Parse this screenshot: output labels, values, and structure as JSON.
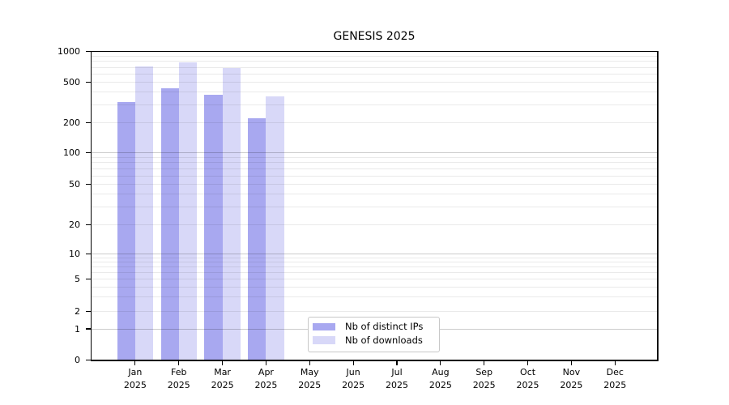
{
  "chart_data": {
    "type": "bar",
    "title": "GENESIS 2025",
    "categories": [
      "Jan",
      "Feb",
      "Mar",
      "Apr",
      "May",
      "Jun",
      "Jul",
      "Aug",
      "Sep",
      "Oct",
      "Nov",
      "Dec"
    ],
    "category_year": "2025",
    "series": [
      {
        "name": "Nb of distinct IPs",
        "color": "#a8a8f0",
        "values": [
          323,
          441,
          377,
          220,
          null,
          null,
          null,
          null,
          null,
          null,
          null,
          null
        ]
      },
      {
        "name": "Nb of downloads",
        "color": "#d8d8f8",
        "values": [
          710,
          778,
          692,
          366,
          null,
          null,
          null,
          null,
          null,
          null,
          null,
          null
        ]
      }
    ],
    "xlabel": "",
    "ylabel": "",
    "yaxis": {
      "scale": "log-with-zero",
      "range": [
        0,
        1000
      ],
      "tick_values": [
        0,
        1,
        2,
        5,
        10,
        20,
        50,
        100,
        200,
        500,
        1000
      ],
      "minor_grid_values": [
        3,
        4,
        6,
        7,
        8,
        9,
        30,
        40,
        60,
        70,
        80,
        90,
        300,
        400,
        600,
        700,
        800,
        900
      ],
      "grid": "on"
    },
    "legend": {
      "position": "bottom-center",
      "entries": [
        "Nb of distinct IPs",
        "Nb of downloads"
      ]
    }
  }
}
